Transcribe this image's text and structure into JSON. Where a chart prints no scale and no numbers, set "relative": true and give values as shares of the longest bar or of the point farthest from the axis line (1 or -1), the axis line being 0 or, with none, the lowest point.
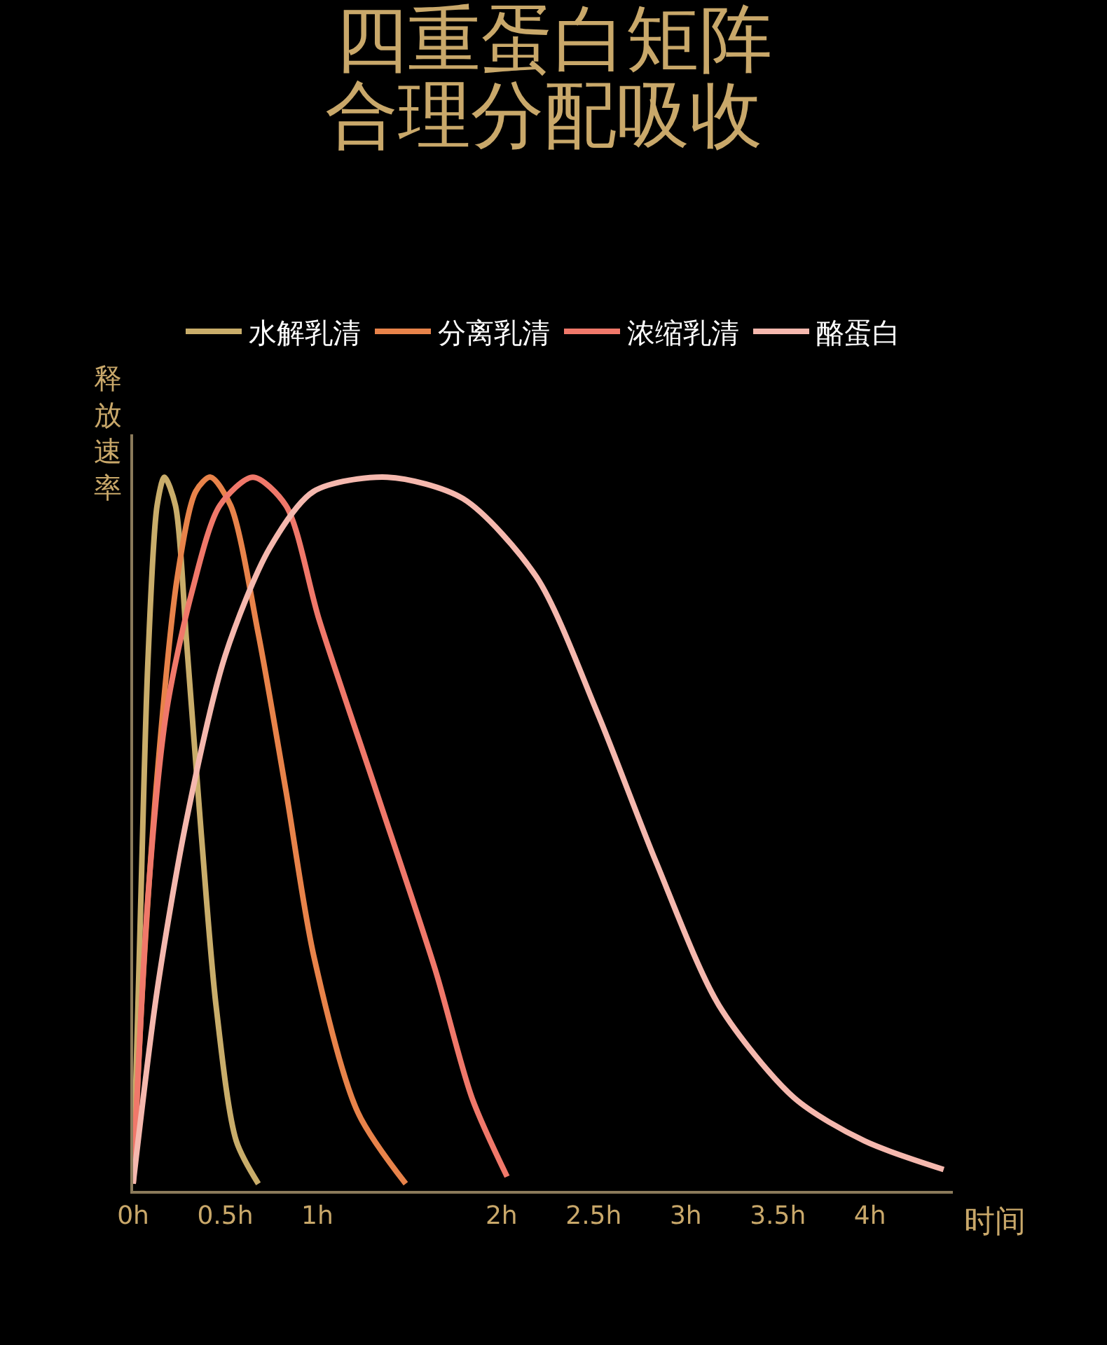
{
  "chart_data": {
    "type": "line",
    "title": "四重蛋白矩阵",
    "subtitle": "合理分配吸收",
    "xlabel": "时间",
    "ylabel": "释放速率",
    "relative": true,
    "legend": "top",
    "marker": "none",
    "line_style": "solid",
    "xlim": [
      0,
      4.45
    ],
    "xticks": [
      {
        "value": 0,
        "label": "0h"
      },
      {
        "value": 0.5,
        "label": "0.5h"
      },
      {
        "value": 1,
        "label": "1h"
      },
      {
        "value": 2,
        "label": "2h"
      },
      {
        "value": 2.5,
        "label": "2.5h"
      },
      {
        "value": 3,
        "label": "3h"
      },
      {
        "value": 3.5,
        "label": "3.5h"
      },
      {
        "value": 4,
        "label": "4h"
      }
    ],
    "series": [
      {
        "name": "水解乳清",
        "color": "#c9ad6a",
        "x": [
          0,
          0.04,
          0.08,
          0.13,
          0.17,
          0.23,
          0.29,
          0.37,
          0.45,
          0.56,
          0.68
        ],
        "values": [
          0.01,
          0.39,
          0.74,
          0.96,
          1.0,
          0.96,
          0.77,
          0.5,
          0.26,
          0.07,
          0.01
        ]
      },
      {
        "name": "分离乳清",
        "color": "#e8834a",
        "x": [
          0,
          0.05,
          0.13,
          0.24,
          0.34,
          0.42,
          0.53,
          0.68,
          0.83,
          0.98,
          1.22,
          1.48
        ],
        "values": [
          0.01,
          0.28,
          0.58,
          0.86,
          0.98,
          1.0,
          0.96,
          0.78,
          0.56,
          0.33,
          0.11,
          0.01
        ]
      },
      {
        "name": "浓缩乳清",
        "color": "#f0786a",
        "x": [
          0,
          0.08,
          0.18,
          0.32,
          0.47,
          0.65,
          0.83,
          1.01,
          1.32,
          1.64,
          1.84,
          2.03
        ],
        "values": [
          0.01,
          0.41,
          0.67,
          0.84,
          0.96,
          1.0,
          0.96,
          0.8,
          0.56,
          0.31,
          0.13,
          0.02
        ]
      },
      {
        "name": "酪蛋白",
        "color": "#f5b8ae",
        "x": [
          0,
          0.13,
          0.29,
          0.5,
          0.74,
          0.98,
          1.38,
          1.79,
          2.19,
          2.52,
          2.84,
          3.18,
          3.59,
          3.97,
          4.4
        ],
        "values": [
          0.01,
          0.28,
          0.52,
          0.75,
          0.9,
          0.98,
          1.0,
          0.97,
          0.86,
          0.67,
          0.46,
          0.26,
          0.13,
          0.07,
          0.03
        ]
      }
    ]
  }
}
